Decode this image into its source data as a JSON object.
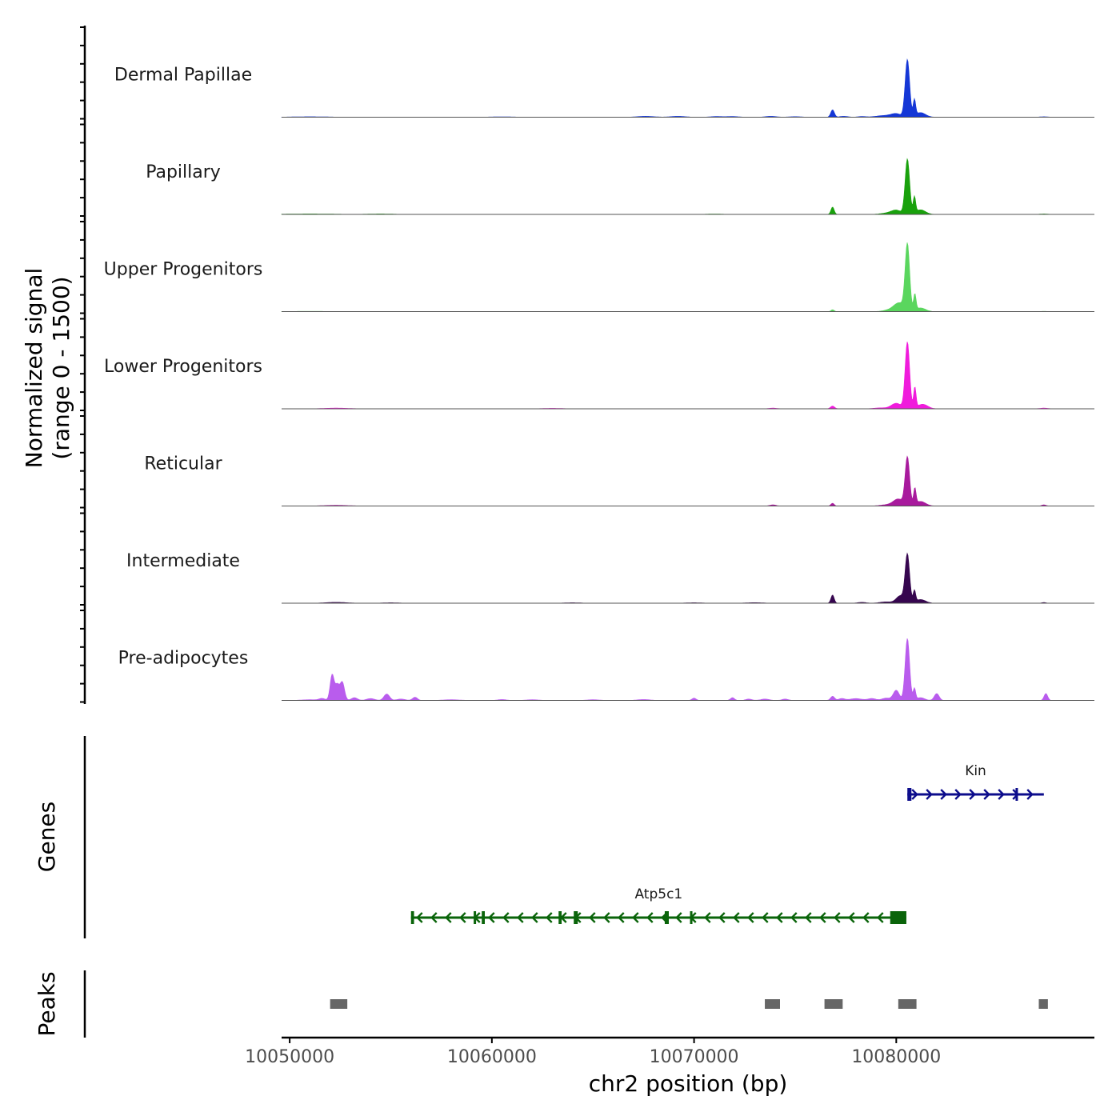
{
  "chart_data": {
    "type": "area",
    "title": "",
    "xlabel": "chr2 position (bp)",
    "ylabel": [
      "Normalized signal",
      "(range 0 - 1500)"
    ],
    "xlim": [
      10049600,
      10089800
    ],
    "ylim": [
      0,
      1500
    ],
    "x_ticks": [
      10050000,
      10060000,
      10070000,
      10080000
    ],
    "x_tick_labels": [
      "10050000",
      "10060000",
      "10070000",
      "10080000"
    ],
    "tracks": [
      {
        "name": "Dermal Papillae",
        "color": "#1537d6",
        "peaks": [
          [
            10051000,
            10,
            900
          ],
          [
            10060500,
            8,
            600
          ],
          [
            10067600,
            20,
            400
          ],
          [
            10069200,
            20,
            350
          ],
          [
            10071100,
            15,
            300
          ],
          [
            10071900,
            15,
            300
          ],
          [
            10073800,
            20,
            250
          ],
          [
            10075000,
            12,
            300
          ],
          [
            10076850,
            160,
            90
          ],
          [
            10077400,
            20,
            200
          ],
          [
            10078300,
            15,
            200
          ],
          [
            10079400,
            35,
            400
          ],
          [
            10080000,
            70,
            250
          ],
          [
            10080550,
            1250,
            110
          ],
          [
            10080900,
            350,
            60
          ],
          [
            10081200,
            100,
            250
          ],
          [
            10087300,
            10,
            200
          ]
        ]
      },
      {
        "name": "Papillary",
        "color": "#19a10c",
        "peaks": [
          [
            10051000,
            10,
            1200
          ],
          [
            10054500,
            10,
            600
          ],
          [
            10071000,
            8,
            400
          ],
          [
            10076850,
            160,
            80
          ],
          [
            10079500,
            25,
            300
          ],
          [
            10080000,
            90,
            250
          ],
          [
            10080550,
            1200,
            110
          ],
          [
            10080900,
            350,
            60
          ],
          [
            10081200,
            100,
            250
          ],
          [
            10087300,
            10,
            200
          ]
        ]
      },
      {
        "name": "Upper Progenitors",
        "color": "#5ad65e",
        "peaks": [
          [
            10051000,
            5,
            1200
          ],
          [
            10076850,
            40,
            80
          ],
          [
            10079700,
            40,
            300
          ],
          [
            10080150,
            180,
            250
          ],
          [
            10080550,
            1450,
            110
          ],
          [
            10080920,
            350,
            60
          ],
          [
            10081200,
            80,
            250
          ],
          [
            10087300,
            5,
            200
          ]
        ]
      },
      {
        "name": "Lower Progenitors",
        "color": "#f01bdc",
        "peaks": [
          [
            10052300,
            15,
            600
          ],
          [
            10063000,
            10,
            500
          ],
          [
            10073900,
            15,
            200
          ],
          [
            10076850,
            60,
            100
          ],
          [
            10079200,
            20,
            300
          ],
          [
            10080000,
            120,
            250
          ],
          [
            10080550,
            1450,
            110
          ],
          [
            10080920,
            450,
            60
          ],
          [
            10081300,
            100,
            250
          ],
          [
            10087300,
            15,
            200
          ]
        ]
      },
      {
        "name": "Reticular",
        "color": "#a81a9d",
        "peaks": [
          [
            10052300,
            15,
            600
          ],
          [
            10073900,
            25,
            150
          ],
          [
            10076850,
            60,
            80
          ],
          [
            10079500,
            25,
            300
          ],
          [
            10080100,
            150,
            250
          ],
          [
            10080550,
            1050,
            110
          ],
          [
            10080920,
            350,
            60
          ],
          [
            10081200,
            100,
            250
          ],
          [
            10087300,
            25,
            100
          ]
        ]
      },
      {
        "name": "Intermediate",
        "color": "#36064f",
        "peaks": [
          [
            10052300,
            20,
            500
          ],
          [
            10055000,
            10,
            400
          ],
          [
            10064000,
            10,
            400
          ],
          [
            10070000,
            10,
            400
          ],
          [
            10073000,
            12,
            400
          ],
          [
            10076850,
            180,
            80
          ],
          [
            10078300,
            20,
            200
          ],
          [
            10079500,
            30,
            300
          ],
          [
            10080200,
            160,
            200
          ],
          [
            10080550,
            1050,
            110
          ],
          [
            10080900,
            250,
            60
          ],
          [
            10081200,
            80,
            250
          ],
          [
            10087300,
            15,
            100
          ]
        ]
      },
      {
        "name": "Pre-adipocytes",
        "color": "#b95ced",
        "peaks": [
          [
            10051000,
            15,
            400
          ],
          [
            10051600,
            40,
            150
          ],
          [
            10052100,
            560,
            100
          ],
          [
            10052350,
            320,
            100
          ],
          [
            10052600,
            400,
            110
          ],
          [
            10053200,
            60,
            150
          ],
          [
            10054000,
            40,
            200
          ],
          [
            10054800,
            140,
            140
          ],
          [
            10055500,
            30,
            200
          ],
          [
            10056200,
            70,
            120
          ],
          [
            10058000,
            15,
            400
          ],
          [
            10060500,
            20,
            200
          ],
          [
            10062000,
            15,
            300
          ],
          [
            10065000,
            15,
            300
          ],
          [
            10067500,
            20,
            300
          ],
          [
            10070000,
            50,
            100
          ],
          [
            10071900,
            60,
            100
          ],
          [
            10072700,
            30,
            150
          ],
          [
            10073500,
            30,
            200
          ],
          [
            10074500,
            30,
            150
          ],
          [
            10076850,
            90,
            100
          ],
          [
            10077300,
            40,
            150
          ],
          [
            10078000,
            40,
            300
          ],
          [
            10078800,
            40,
            200
          ],
          [
            10079500,
            50,
            200
          ],
          [
            10080000,
            220,
            150
          ],
          [
            10080550,
            1350,
            110
          ],
          [
            10080900,
            250,
            60
          ],
          [
            10081200,
            60,
            200
          ],
          [
            10082000,
            150,
            120
          ],
          [
            10087400,
            150,
            90
          ]
        ]
      }
    ],
    "genes": [
      {
        "name": "Kin",
        "start": 10080550,
        "end": 10087300,
        "strand": "+",
        "color": "#0d0d8c",
        "exons": [
          [
            10080550,
            10080750
          ],
          [
            10085900,
            10086000
          ]
        ]
      },
      {
        "name": "Atp5c1",
        "start": 10056000,
        "end": 10080500,
        "strand": "-",
        "color": "#0a640a",
        "exons": [
          [
            10056000,
            10056150
          ],
          [
            10059100,
            10059200
          ],
          [
            10059500,
            10059650
          ],
          [
            10063300,
            10063450
          ],
          [
            10064050,
            10064250
          ],
          [
            10068550,
            10068750
          ],
          [
            10069800,
            10069850
          ],
          [
            10079700,
            10080500
          ]
        ]
      }
    ],
    "peaks": [
      [
        10052000,
        10052850
      ],
      [
        10073500,
        10074250
      ],
      [
        10076450,
        10077350
      ],
      [
        10080100,
        10081000
      ],
      [
        10087050,
        10087500
      ]
    ],
    "panel_labels": {
      "genes": "Genes",
      "peaks": "Peaks"
    }
  }
}
